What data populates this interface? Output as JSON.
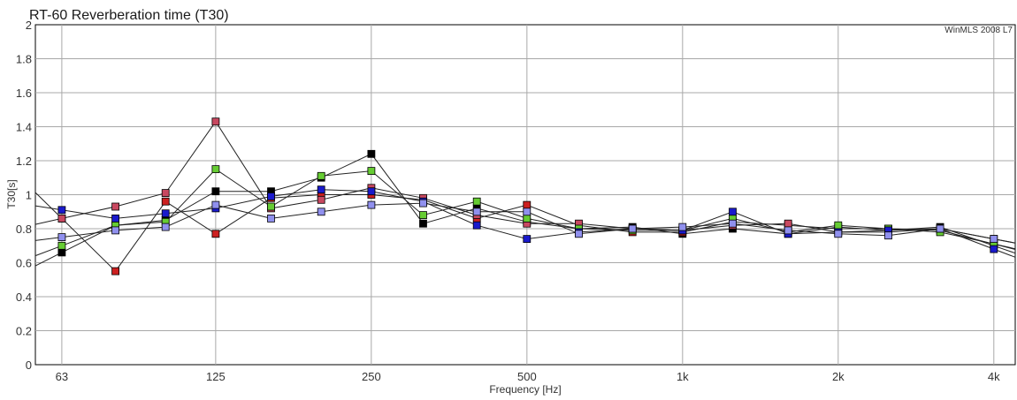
{
  "chart_data": {
    "type": "line",
    "title": "RT-60 Reverberation time (T30)",
    "watermark": "WinMLS 2008 L7",
    "xlabel": "Frequency [Hz]",
    "ylabel": "T30[s]",
    "x_scale": "log",
    "xlim": [
      56,
      4400
    ],
    "ylim": [
      0,
      2
    ],
    "grid": true,
    "x": [
      63,
      80,
      100,
      125,
      160,
      200,
      250,
      315,
      400,
      500,
      630,
      800,
      1000,
      1250,
      1600,
      2000,
      2500,
      3150,
      4000
    ],
    "x_tick_labels": [
      "63",
      "125",
      "250",
      "500",
      "1k",
      "2k",
      "4k"
    ],
    "x_tick_values": [
      63,
      125,
      250,
      500,
      1000,
      2000,
      4000
    ],
    "y_tick_labels": [
      "0",
      "0.2",
      "0.4",
      "0.6",
      "0.8",
      "1",
      "1.2",
      "1.4",
      "1.6",
      "1.8",
      "2"
    ],
    "series": [
      {
        "color": "#000000",
        "values": [
          0.66,
          0.82,
          0.85,
          1.02,
          1.02,
          1.1,
          1.24,
          0.83,
          0.92,
          0.84,
          0.8,
          0.81,
          0.77,
          0.8,
          0.77,
          0.81,
          0.79,
          0.81,
          0.7
        ]
      },
      {
        "color": "#cc2020",
        "values": [
          0.86,
          0.55,
          0.96,
          0.77,
          0.98,
          1.0,
          1.0,
          0.97,
          0.86,
          0.94,
          0.82,
          0.78,
          0.78,
          0.84,
          0.82,
          0.8,
          0.8,
          0.79,
          0.71
        ]
      },
      {
        "color": "#c84860",
        "values": [
          0.86,
          0.93,
          1.01,
          1.43,
          0.92,
          0.97,
          1.04,
          0.98,
          0.88,
          0.83,
          0.83,
          0.8,
          0.79,
          0.82,
          0.83,
          0.78,
          0.78,
          0.8,
          0.74
        ]
      },
      {
        "color": "#66cc33",
        "values": [
          0.7,
          0.82,
          0.84,
          1.15,
          0.93,
          1.11,
          1.14,
          0.88,
          0.96,
          0.86,
          0.8,
          0.79,
          0.79,
          0.86,
          0.78,
          0.82,
          0.8,
          0.78,
          0.71
        ]
      },
      {
        "color": "#1a1acc",
        "values": [
          0.91,
          0.86,
          0.89,
          0.92,
          0.99,
          1.03,
          1.02,
          0.96,
          0.82,
          0.74,
          0.78,
          0.8,
          0.79,
          0.9,
          0.77,
          0.78,
          0.79,
          0.8,
          0.68
        ]
      },
      {
        "color": "#9090ee",
        "values": [
          0.75,
          0.79,
          0.81,
          0.94,
          0.86,
          0.9,
          0.94,
          0.95,
          0.9,
          0.9,
          0.77,
          0.8,
          0.81,
          0.83,
          0.79,
          0.77,
          0.76,
          0.8,
          0.74
        ]
      }
    ]
  }
}
